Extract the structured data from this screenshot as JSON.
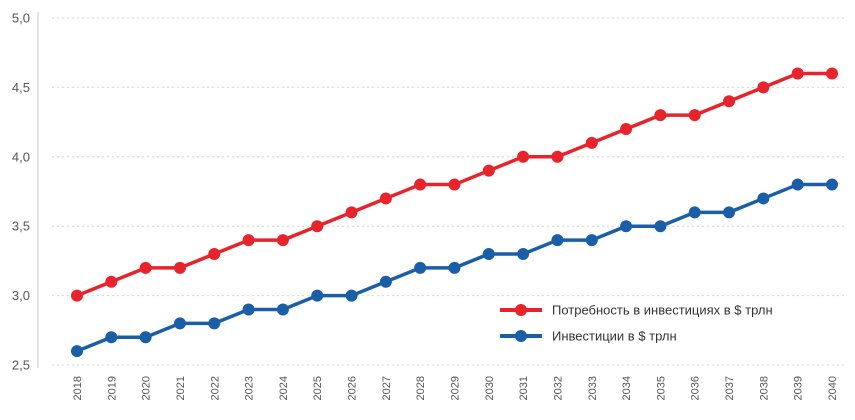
{
  "chart_data": {
    "type": "line",
    "x": [
      "2018",
      "2019",
      "2020",
      "2021",
      "2022",
      "2023",
      "2024",
      "2025",
      "2026",
      "2027",
      "2028",
      "2029",
      "2030",
      "2031",
      "2032",
      "2033",
      "2034",
      "2035",
      "2036",
      "2037",
      "2038",
      "2039",
      "2040"
    ],
    "y_ticks": [
      "5,0",
      "4,5",
      "4,0",
      "3,5",
      "3,0",
      "2,5"
    ],
    "ylim": [
      2.5,
      5.0
    ],
    "grid": "horizontal dashed",
    "legend_position": "bottom-right",
    "series": [
      {
        "name": "Потребность в инвестициях в $ трлн",
        "color": "#e8232b",
        "values": [
          3.0,
          3.1,
          3.2,
          3.2,
          3.3,
          3.4,
          3.4,
          3.5,
          3.6,
          3.7,
          3.8,
          3.8,
          3.9,
          4.0,
          4.0,
          4.1,
          4.2,
          4.3,
          4.3,
          4.4,
          4.5,
          4.6,
          4.6
        ]
      },
      {
        "name": "Инвестиции в $ трлн",
        "color": "#1b5ea8",
        "values": [
          2.6,
          2.7,
          2.7,
          2.8,
          2.8,
          2.9,
          2.9,
          3.0,
          3.0,
          3.1,
          3.2,
          3.2,
          3.3,
          3.3,
          3.4,
          3.4,
          3.5,
          3.5,
          3.6,
          3.6,
          3.7,
          3.8,
          3.8
        ]
      }
    ]
  }
}
